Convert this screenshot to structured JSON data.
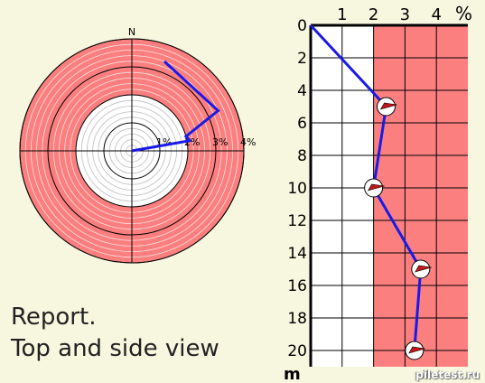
{
  "caption": {
    "line1": "Report.",
    "line2": "Top and side view"
  },
  "watermark": "piletest.ru",
  "colors": {
    "tolerance_zone": "#fb7f7f",
    "ok_zone": "#ffffff",
    "path": "#1a1ae8",
    "marker": "#c01818",
    "background": "#f7f7df"
  },
  "chart_data": [
    {
      "type": "polar",
      "title": "",
      "north_label": "N",
      "ring_labels": [
        "1%",
        "2%",
        "3%",
        "4%"
      ],
      "rmax": 4,
      "tolerance_from": 2,
      "top_view_path": [
        {
          "depth": 0,
          "r": 0,
          "theta_deg": 0
        },
        {
          "depth": 5,
          "r": 2.1,
          "theta_deg": 80
        },
        {
          "depth": 10,
          "r": 2,
          "theta_deg": 75
        },
        {
          "depth": 15,
          "r": 3.4,
          "theta_deg": 65
        },
        {
          "depth": 20,
          "r": 3.4,
          "theta_deg": 20
        }
      ]
    },
    {
      "type": "line",
      "title": "",
      "x_unit": "%",
      "y_unit": "m",
      "x_ticks": [
        1,
        2,
        3,
        4
      ],
      "y_ticks": [
        0,
        2,
        4,
        6,
        8,
        10,
        12,
        14,
        16,
        18,
        20
      ],
      "xlim": [
        0,
        5
      ],
      "ylim": [
        0,
        21
      ],
      "tolerance_from": 2,
      "grid": true,
      "x": [
        0.0,
        2.4,
        2.0,
        3.5,
        3.3
      ],
      "y": [
        0,
        5,
        10,
        15,
        20
      ]
    }
  ]
}
